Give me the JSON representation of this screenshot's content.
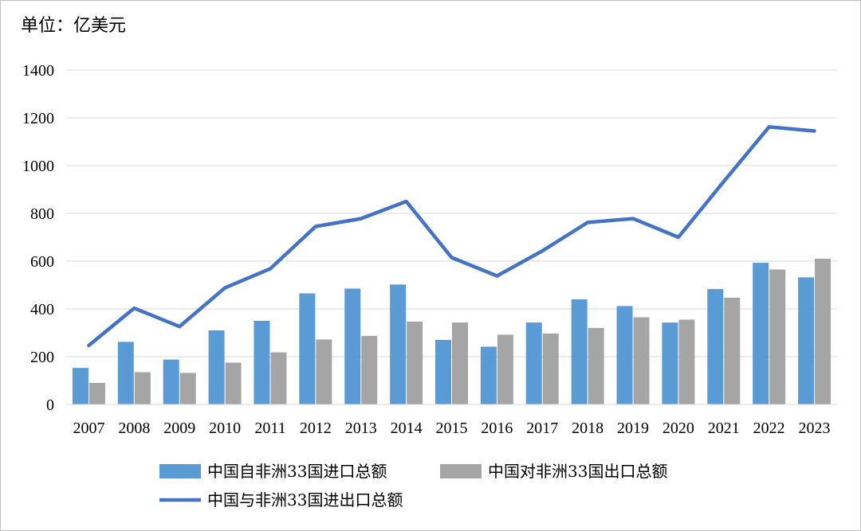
{
  "chart_data": {
    "type": "bar",
    "unit_label": "单位：亿美元",
    "categories": [
      "2007",
      "2008",
      "2009",
      "2010",
      "2011",
      "2012",
      "2013",
      "2014",
      "2015",
      "2016",
      "2017",
      "2018",
      "2019",
      "2020",
      "2021",
      "2022",
      "2023"
    ],
    "series": [
      {
        "name": "中国自非洲33国进口总额",
        "kind": "bar",
        "color": "#5b9bd5",
        "values": [
          153,
          262,
          188,
          310,
          350,
          465,
          485,
          502,
          270,
          242,
          343,
          440,
          412,
          343,
          483,
          593,
          532
        ]
      },
      {
        "name": "中国对非洲33国出口总额",
        "kind": "bar",
        "color": "#a5a5a5",
        "values": [
          90,
          135,
          132,
          175,
          218,
          272,
          287,
          347,
          343,
          292,
          297,
          320,
          365,
          355,
          447,
          565,
          610
        ]
      },
      {
        "name": "中国与非洲33国进出口总额",
        "kind": "line",
        "color": "#4472c4",
        "values": [
          247,
          403,
          326,
          488,
          568,
          745,
          778,
          850,
          615,
          538,
          643,
          762,
          778,
          700,
          933,
          1162,
          1145
        ]
      }
    ],
    "ylim": [
      0,
      1400
    ],
    "yticks": [
      0,
      200,
      400,
      600,
      800,
      1000,
      1200,
      1400
    ],
    "grid": true,
    "legend_position": "bottom"
  }
}
